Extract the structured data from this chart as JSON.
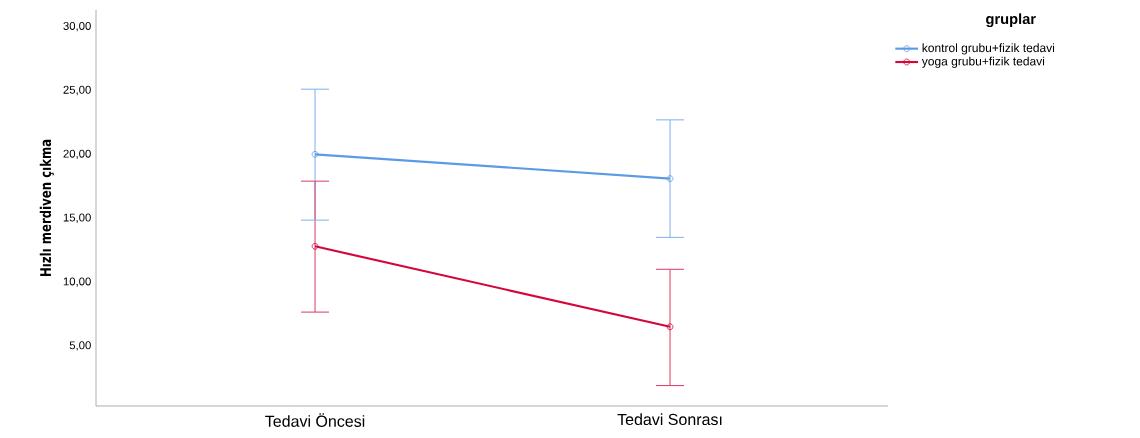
{
  "chart_data": {
    "type": "line",
    "ylabel": "Hızlı merdiven çıkma",
    "legend_title": "gruplar",
    "categories": [
      "Tedavi Öncesi",
      "Tedavi Sonrası"
    ],
    "series": [
      {
        "name": "kontrol grubu+fizik tedavi",
        "color": "#5b9be6",
        "values": [
          20.0,
          18.1
        ],
        "errors": [
          [
            14.85,
            25.1
          ],
          [
            13.5,
            22.7
          ]
        ]
      },
      {
        "name": "yoga grubu+fizik tedavi",
        "color": "#d4073b",
        "values": [
          12.8,
          6.5
        ],
        "errors": [
          [
            7.65,
            17.9
          ],
          [
            1.9,
            11.0
          ]
        ]
      }
    ],
    "ylim": [
      0.3,
      31.3
    ],
    "yticks": [
      {
        "value": 5,
        "label": "5,00"
      },
      {
        "value": 10,
        "label": "10,00"
      },
      {
        "value": 15,
        "label": "15,00"
      },
      {
        "value": 20,
        "label": "20,00"
      },
      {
        "value": 25,
        "label": "25,00"
      },
      {
        "value": 30,
        "label": "30,00"
      }
    ],
    "marker": "circle",
    "line_style": "solid",
    "legend": "top right",
    "grid": false
  }
}
